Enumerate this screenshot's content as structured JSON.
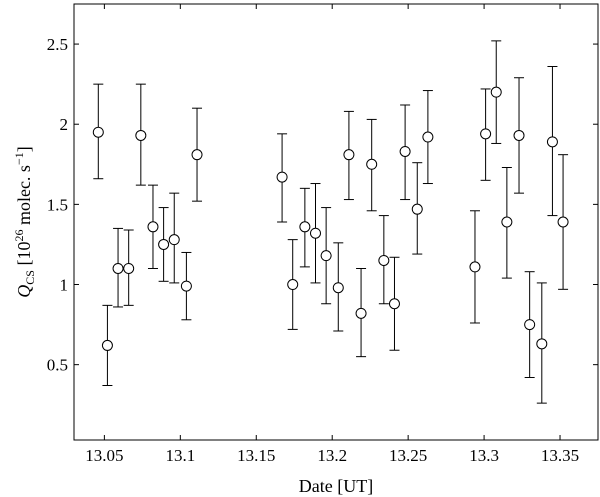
{
  "chart_data": {
    "type": "scatter",
    "xlabel": "Date [UT]",
    "ylabel_parts": {
      "q": "Q",
      "sub": "CS",
      "open": " [10",
      "exp": "26",
      "mid": " molec. s",
      "exp2": "−1",
      "close": "]"
    },
    "xlim": [
      13.03,
      13.375
    ],
    "ylim": [
      0.03,
      2.75
    ],
    "x_ticks": [
      13.05,
      13.1,
      13.15,
      13.2,
      13.25,
      13.3,
      13.35
    ],
    "x_tick_labels": [
      "13.05",
      "13.1",
      "13.15",
      "13.2",
      "13.25",
      "13.3",
      "13.35"
    ],
    "y_ticks": [
      0.5,
      1,
      1.5,
      2,
      2.5
    ],
    "y_tick_labels": [
      "0.5",
      "1",
      "1.5",
      "2",
      "2.5"
    ],
    "grid": false,
    "marker": "open-circle",
    "series": [
      {
        "points": [
          {
            "x": 13.046,
            "y": 1.95,
            "lo": 1.66,
            "hi": 2.25
          },
          {
            "x": 13.052,
            "y": 0.62,
            "lo": 0.37,
            "hi": 0.87
          },
          {
            "x": 13.059,
            "y": 1.1,
            "lo": 0.86,
            "hi": 1.35
          },
          {
            "x": 13.066,
            "y": 1.1,
            "lo": 0.87,
            "hi": 1.34
          },
          {
            "x": 13.074,
            "y": 1.93,
            "lo": 1.62,
            "hi": 2.25
          },
          {
            "x": 13.082,
            "y": 1.36,
            "lo": 1.1,
            "hi": 1.62
          },
          {
            "x": 13.089,
            "y": 1.25,
            "lo": 1.02,
            "hi": 1.48
          },
          {
            "x": 13.096,
            "y": 1.28,
            "lo": 1.01,
            "hi": 1.57
          },
          {
            "x": 13.104,
            "y": 0.99,
            "lo": 0.78,
            "hi": 1.2
          },
          {
            "x": 13.111,
            "y": 1.81,
            "lo": 1.52,
            "hi": 2.1
          },
          {
            "x": 13.167,
            "y": 1.67,
            "lo": 1.39,
            "hi": 1.94
          },
          {
            "x": 13.174,
            "y": 1.0,
            "lo": 0.72,
            "hi": 1.28
          },
          {
            "x": 13.182,
            "y": 1.36,
            "lo": 1.11,
            "hi": 1.6
          },
          {
            "x": 13.189,
            "y": 1.32,
            "lo": 1.01,
            "hi": 1.63
          },
          {
            "x": 13.196,
            "y": 1.18,
            "lo": 0.88,
            "hi": 1.48
          },
          {
            "x": 13.204,
            "y": 0.98,
            "lo": 0.71,
            "hi": 1.26
          },
          {
            "x": 13.211,
            "y": 1.81,
            "lo": 1.53,
            "hi": 2.08
          },
          {
            "x": 13.219,
            "y": 0.82,
            "lo": 0.55,
            "hi": 1.1
          },
          {
            "x": 13.226,
            "y": 1.75,
            "lo": 1.46,
            "hi": 2.03
          },
          {
            "x": 13.234,
            "y": 1.15,
            "lo": 0.88,
            "hi": 1.43
          },
          {
            "x": 13.241,
            "y": 0.88,
            "lo": 0.59,
            "hi": 1.17
          },
          {
            "x": 13.248,
            "y": 1.83,
            "lo": 1.53,
            "hi": 2.12
          },
          {
            "x": 13.256,
            "y": 1.47,
            "lo": 1.19,
            "hi": 1.76
          },
          {
            "x": 13.263,
            "y": 1.92,
            "lo": 1.63,
            "hi": 2.21
          },
          {
            "x": 13.294,
            "y": 1.11,
            "lo": 0.76,
            "hi": 1.46
          },
          {
            "x": 13.301,
            "y": 1.94,
            "lo": 1.65,
            "hi": 2.22
          },
          {
            "x": 13.308,
            "y": 2.2,
            "lo": 1.88,
            "hi": 2.52
          },
          {
            "x": 13.315,
            "y": 1.39,
            "lo": 1.04,
            "hi": 1.73
          },
          {
            "x": 13.323,
            "y": 1.93,
            "lo": 1.57,
            "hi": 2.29
          },
          {
            "x": 13.33,
            "y": 0.75,
            "lo": 0.42,
            "hi": 1.08
          },
          {
            "x": 13.338,
            "y": 0.63,
            "lo": 0.26,
            "hi": 1.01
          },
          {
            "x": 13.345,
            "y": 1.89,
            "lo": 1.43,
            "hi": 2.36
          },
          {
            "x": 13.352,
            "y": 1.39,
            "lo": 0.97,
            "hi": 1.81
          }
        ]
      }
    ]
  }
}
